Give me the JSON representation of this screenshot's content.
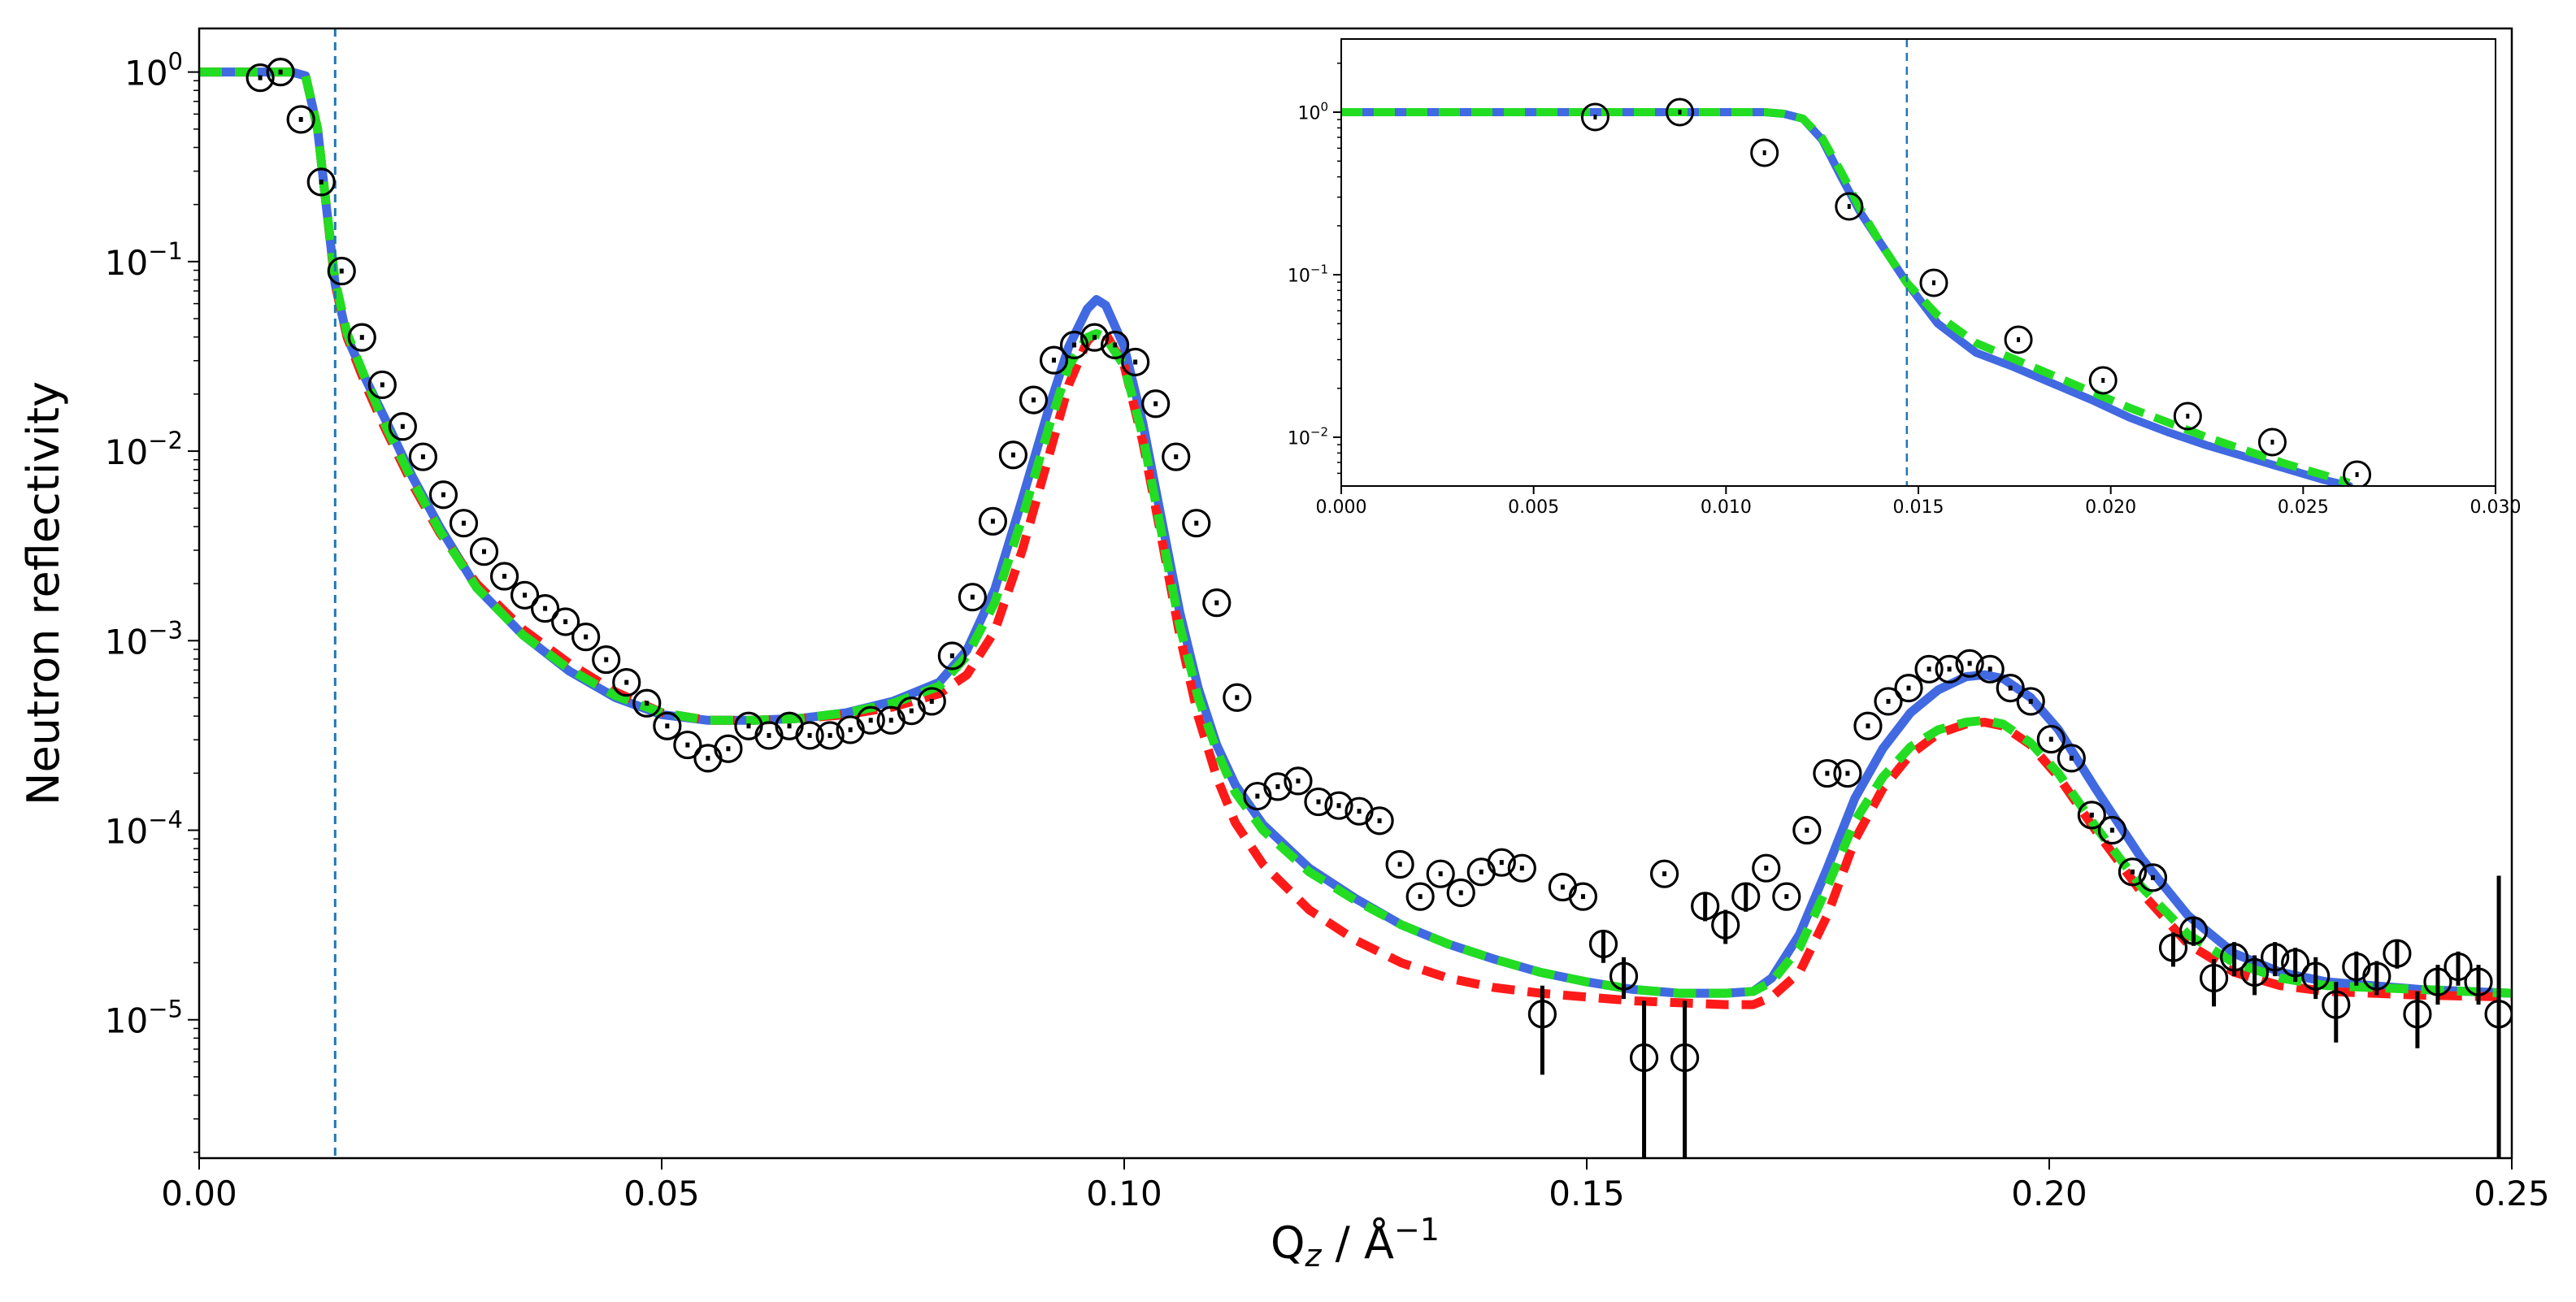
{
  "colors": {
    "blue": "#4169e1",
    "red": "#ff1a1a",
    "green": "#22dd22",
    "vline": "#1f77b4",
    "axis": "#000000"
  },
  "chart_data": [
    {
      "id": "main",
      "type": "line",
      "title": "",
      "xlabel": "Q",
      "xlabel_sub": "z",
      "xlabel_unit": " / Å",
      "xlabel_exp": "−1",
      "ylabel": "Neutron reflectivity",
      "xlim": [
        0.0,
        0.25
      ],
      "ylim_log10": [
        -5.73,
        0.23
      ],
      "yscale": "log",
      "xticks": [
        0.0,
        0.05,
        0.1,
        0.15,
        0.2,
        0.25
      ],
      "xtick_labels": [
        "0.00",
        "0.05",
        "0.10",
        "0.15",
        "0.20",
        "0.25"
      ],
      "yticks_exp": [
        0,
        -1,
        -2,
        -3,
        -4,
        -5
      ],
      "ytick_base": "10",
      "ytick_exps": [
        "0",
        "−1",
        "−2",
        "−3",
        "−4",
        "−5"
      ],
      "vline_x": 0.0147,
      "series": [
        {
          "name": "model-blue",
          "style": "solid",
          "color_key": "blue",
          "x": [
            0.0,
            0.01,
            0.0115,
            0.0128,
            0.0135,
            0.0147,
            0.016,
            0.018,
            0.02,
            0.023,
            0.026,
            0.03,
            0.035,
            0.04,
            0.045,
            0.05,
            0.055,
            0.06,
            0.065,
            0.07,
            0.075,
            0.08,
            0.083,
            0.086,
            0.089,
            0.092,
            0.094,
            0.096,
            0.097,
            0.098,
            0.1,
            0.102,
            0.104,
            0.106,
            0.108,
            0.11,
            0.112,
            0.115,
            0.12,
            0.125,
            0.13,
            0.135,
            0.14,
            0.145,
            0.15,
            0.155,
            0.16,
            0.165,
            0.168,
            0.17,
            0.173,
            0.176,
            0.179,
            0.182,
            0.185,
            0.188,
            0.191,
            0.193,
            0.195,
            0.198,
            0.201,
            0.205,
            0.21,
            0.215,
            0.22,
            0.225,
            0.23,
            0.24,
            0.25
          ],
          "logy": [
            0,
            0,
            -0.02,
            -0.3,
            -0.6,
            -1.12,
            -1.4,
            -1.62,
            -1.82,
            -2.13,
            -2.4,
            -2.72,
            -2.97,
            -3.16,
            -3.3,
            -3.39,
            -3.42,
            -3.42,
            -3.41,
            -3.38,
            -3.32,
            -3.22,
            -3.05,
            -2.73,
            -2.25,
            -1.75,
            -1.45,
            -1.25,
            -1.2,
            -1.23,
            -1.45,
            -1.85,
            -2.35,
            -2.85,
            -3.25,
            -3.55,
            -3.76,
            -3.97,
            -4.2,
            -4.36,
            -4.5,
            -4.6,
            -4.68,
            -4.75,
            -4.8,
            -4.84,
            -4.86,
            -4.86,
            -4.85,
            -4.78,
            -4.55,
            -4.2,
            -3.83,
            -3.57,
            -3.38,
            -3.26,
            -3.19,
            -3.18,
            -3.2,
            -3.3,
            -3.47,
            -3.78,
            -4.15,
            -4.45,
            -4.65,
            -4.75,
            -4.8,
            -4.84,
            -4.86
          ]
        },
        {
          "name": "model-red",
          "style": "dashed",
          "color_key": "red",
          "x": [
            0.0,
            0.01,
            0.0115,
            0.0128,
            0.0135,
            0.0147,
            0.016,
            0.018,
            0.02,
            0.023,
            0.026,
            0.03,
            0.035,
            0.04,
            0.045,
            0.05,
            0.055,
            0.06,
            0.065,
            0.07,
            0.075,
            0.08,
            0.083,
            0.086,
            0.089,
            0.092,
            0.094,
            0.096,
            0.097,
            0.098,
            0.1,
            0.102,
            0.104,
            0.106,
            0.108,
            0.11,
            0.112,
            0.115,
            0.12,
            0.125,
            0.13,
            0.135,
            0.14,
            0.145,
            0.15,
            0.155,
            0.16,
            0.165,
            0.168,
            0.17,
            0.173,
            0.176,
            0.179,
            0.182,
            0.185,
            0.188,
            0.191,
            0.193,
            0.195,
            0.198,
            0.201,
            0.205,
            0.21,
            0.215,
            0.22,
            0.225,
            0.23,
            0.24,
            0.25
          ],
          "logy": [
            0,
            0,
            -0.02,
            -0.3,
            -0.6,
            -1.12,
            -1.4,
            -1.65,
            -1.87,
            -2.17,
            -2.43,
            -2.7,
            -2.94,
            -3.12,
            -3.27,
            -3.38,
            -3.42,
            -3.42,
            -3.41,
            -3.39,
            -3.35,
            -3.28,
            -3.18,
            -2.95,
            -2.52,
            -2.0,
            -1.65,
            -1.42,
            -1.37,
            -1.38,
            -1.55,
            -1.95,
            -2.45,
            -2.97,
            -3.4,
            -3.72,
            -3.96,
            -4.18,
            -4.42,
            -4.58,
            -4.7,
            -4.78,
            -4.83,
            -4.86,
            -4.88,
            -4.9,
            -4.91,
            -4.92,
            -4.92,
            -4.88,
            -4.75,
            -4.45,
            -4.05,
            -3.78,
            -3.6,
            -3.49,
            -3.44,
            -3.43,
            -3.45,
            -3.55,
            -3.72,
            -4.0,
            -4.33,
            -4.6,
            -4.75,
            -4.82,
            -4.85,
            -4.87,
            -4.88
          ]
        },
        {
          "name": "model-green",
          "style": "dashed",
          "color_key": "green",
          "x": [
            0.0,
            0.01,
            0.0115,
            0.0128,
            0.0135,
            0.0147,
            0.016,
            0.018,
            0.02,
            0.023,
            0.026,
            0.03,
            0.035,
            0.04,
            0.045,
            0.05,
            0.055,
            0.06,
            0.065,
            0.07,
            0.075,
            0.08,
            0.083,
            0.086,
            0.089,
            0.092,
            0.094,
            0.096,
            0.097,
            0.098,
            0.1,
            0.102,
            0.104,
            0.106,
            0.108,
            0.11,
            0.112,
            0.115,
            0.12,
            0.125,
            0.13,
            0.135,
            0.14,
            0.145,
            0.15,
            0.155,
            0.16,
            0.165,
            0.168,
            0.17,
            0.173,
            0.176,
            0.179,
            0.182,
            0.185,
            0.188,
            0.191,
            0.193,
            0.195,
            0.198,
            0.201,
            0.205,
            0.21,
            0.215,
            0.22,
            0.225,
            0.23,
            0.24,
            0.25
          ],
          "logy": [
            0,
            0,
            -0.02,
            -0.3,
            -0.6,
            -1.1,
            -1.38,
            -1.62,
            -1.85,
            -2.15,
            -2.42,
            -2.72,
            -2.97,
            -3.15,
            -3.29,
            -3.38,
            -3.42,
            -3.42,
            -3.41,
            -3.38,
            -3.33,
            -3.24,
            -3.08,
            -2.8,
            -2.35,
            -1.85,
            -1.55,
            -1.4,
            -1.38,
            -1.4,
            -1.55,
            -1.92,
            -2.42,
            -2.92,
            -3.3,
            -3.58,
            -3.8,
            -4.0,
            -4.22,
            -4.37,
            -4.5,
            -4.6,
            -4.68,
            -4.75,
            -4.8,
            -4.84,
            -4.86,
            -4.86,
            -4.85,
            -4.8,
            -4.62,
            -4.3,
            -3.95,
            -3.72,
            -3.56,
            -3.47,
            -3.43,
            -3.42,
            -3.44,
            -3.54,
            -3.7,
            -3.98,
            -4.3,
            -4.55,
            -4.7,
            -4.78,
            -4.82,
            -4.84,
            -4.86
          ]
        }
      ],
      "points": {
        "name": "data",
        "marker": "open-circle",
        "x": [
          0.0066,
          0.0088,
          0.011,
          0.0132,
          0.0154,
          0.0176,
          0.0198,
          0.022,
          0.0242,
          0.0264,
          0.0286,
          0.0308,
          0.033,
          0.0352,
          0.0374,
          0.0396,
          0.0418,
          0.044,
          0.0462,
          0.0484,
          0.0506,
          0.0528,
          0.055,
          0.0572,
          0.0594,
          0.0616,
          0.0638,
          0.066,
          0.0682,
          0.0704,
          0.0726,
          0.0748,
          0.077,
          0.0792,
          0.0814,
          0.0836,
          0.0858,
          0.088,
          0.0902,
          0.0924,
          0.0946,
          0.0968,
          0.099,
          0.1012,
          0.1034,
          0.1056,
          0.1078,
          0.11,
          0.1122,
          0.1144,
          0.1166,
          0.1188,
          0.121,
          0.1232,
          0.1254,
          0.1276,
          0.1298,
          0.132,
          0.1342,
          0.1364,
          0.1386,
          0.1408,
          0.143,
          0.1452,
          0.1474,
          0.1496,
          0.1518,
          0.154,
          0.1562,
          0.1584,
          0.1606,
          0.1628,
          0.165,
          0.1672,
          0.1694,
          0.1716,
          0.1738,
          0.176,
          0.1782,
          0.1804,
          0.1826,
          0.1848,
          0.187,
          0.1892,
          0.1914,
          0.1936,
          0.1958,
          0.198,
          0.2002,
          0.2024,
          0.2046,
          0.2068,
          0.209,
          0.2112,
          0.2134,
          0.2156,
          0.2178,
          0.22,
          0.2222,
          0.2244,
          0.2266,
          0.2288,
          0.231,
          0.2332,
          0.2354,
          0.2376,
          0.2398,
          0.242,
          0.2442,
          0.2464,
          0.2486
        ],
        "logy": [
          -0.03,
          0.0,
          -0.25,
          -0.58,
          -1.05,
          -1.4,
          -1.65,
          -1.87,
          -2.03,
          -2.23,
          -2.38,
          -2.53,
          -2.66,
          -2.76,
          -2.83,
          -2.9,
          -2.98,
          -3.1,
          -3.22,
          -3.33,
          -3.45,
          -3.55,
          -3.62,
          -3.57,
          -3.45,
          -3.5,
          -3.45,
          -3.5,
          -3.5,
          -3.47,
          -3.42,
          -3.42,
          -3.37,
          -3.32,
          -3.08,
          -2.77,
          -2.37,
          -2.02,
          -1.73,
          -1.52,
          -1.44,
          -1.4,
          -1.44,
          -1.53,
          -1.75,
          -2.03,
          -2.38,
          -2.8,
          -3.3,
          -3.82,
          -3.77,
          -3.74,
          -3.85,
          -3.87,
          -3.9,
          -3.95,
          -4.18,
          -4.35,
          -4.23,
          -4.33,
          -4.22,
          -4.17,
          -4.2,
          -4.97,
          -4.3,
          -4.35,
          -4.6,
          -4.77,
          -5.2,
          -4.23,
          -5.2,
          -4.4,
          -4.5,
          -4.35,
          -4.2,
          -4.35,
          -4.0,
          -3.7,
          -3.7,
          -3.45,
          -3.32,
          -3.25,
          -3.15,
          -3.15,
          -3.12,
          -3.15,
          -3.25,
          -3.32,
          -3.52,
          -3.62,
          -3.92,
          -4.0,
          -4.22,
          -4.25,
          -4.62,
          -4.53,
          -4.78,
          -4.67,
          -4.75,
          -4.67,
          -4.7,
          -4.77,
          -4.92,
          -4.72,
          -4.77,
          -4.65,
          -4.97,
          -4.8,
          -4.72,
          -4.8,
          -4.97
        ],
        "err_lo": [
          0,
          0,
          0,
          0,
          0,
          0,
          0,
          0,
          0,
          0,
          0,
          0,
          0,
          0,
          0,
          0,
          0,
          0,
          0,
          0,
          0,
          0,
          0,
          0,
          0,
          0,
          0,
          0,
          0,
          0,
          0,
          0,
          0,
          0,
          0,
          0,
          0,
          0,
          0,
          0,
          0,
          0,
          0,
          0,
          0,
          0,
          0,
          0,
          0,
          0,
          0,
          0,
          0,
          0,
          0,
          0,
          0,
          0,
          0,
          0,
          0,
          0,
          0,
          0.32,
          0,
          0,
          0.1,
          0.12,
          0.65,
          0,
          0.65,
          0.08,
          0.1,
          0.08,
          0,
          0,
          0,
          0,
          0,
          0,
          0,
          0,
          0,
          0,
          0,
          0,
          0,
          0,
          0,
          0,
          0,
          0,
          0,
          0,
          0.1,
          0.08,
          0.15,
          0.1,
          0.12,
          0.1,
          0.1,
          0.12,
          0.2,
          0.1,
          0.1,
          0.08,
          0.18,
          0.12,
          0.1,
          0.12,
          0.97
        ],
        "err_hi": [
          0,
          0,
          0,
          0,
          0,
          0,
          0,
          0,
          0,
          0,
          0,
          0,
          0,
          0,
          0,
          0,
          0,
          0,
          0,
          0,
          0,
          0,
          0,
          0,
          0,
          0,
          0,
          0,
          0,
          0,
          0,
          0,
          0,
          0,
          0,
          0,
          0,
          0,
          0,
          0,
          0,
          0,
          0,
          0,
          0,
          0,
          0,
          0,
          0,
          0,
          0,
          0,
          0,
          0,
          0,
          0,
          0,
          0,
          0,
          0,
          0,
          0,
          0,
          0.15,
          0,
          0,
          0.07,
          0.1,
          0.3,
          0,
          0.3,
          0.07,
          0.08,
          0.07,
          0,
          0,
          0,
          0,
          0,
          0,
          0,
          0,
          0,
          0,
          0,
          0,
          0,
          0,
          0,
          0,
          0,
          0,
          0,
          0,
          0.08,
          0.07,
          0.1,
          0.08,
          0.09,
          0.08,
          0.08,
          0.1,
          0.12,
          0.08,
          0.08,
          0.07,
          0.12,
          0.09,
          0.08,
          0.09,
          0.73
        ]
      }
    },
    {
      "id": "inset",
      "type": "line",
      "title": "",
      "xlabel": "",
      "ylabel": "",
      "xlim": [
        0.0,
        0.03
      ],
      "ylim_log10": [
        -2.3,
        0.45
      ],
      "yscale": "log",
      "xticks": [
        0.0,
        0.005,
        0.01,
        0.015,
        0.02,
        0.025,
        0.03
      ],
      "xtick_labels": [
        "0.000",
        "0.005",
        "0.010",
        "0.015",
        "0.020",
        "0.025",
        "0.030"
      ],
      "yticks_exp": [
        0,
        -1,
        -2
      ],
      "ytick_base": "10",
      "ytick_exps": [
        "0",
        "−1",
        "−2"
      ],
      "vline_x": 0.0147,
      "series": [
        {
          "name": "inset-blue",
          "style": "solid",
          "color_key": "blue",
          "x": [
            0.0,
            0.011,
            0.0115,
            0.012,
            0.0125,
            0.013,
            0.0135,
            0.014,
            0.0147,
            0.0155,
            0.0165,
            0.0175,
            0.0185,
            0.0195,
            0.0205,
            0.0215,
            0.0225,
            0.0235,
            0.0245,
            0.0255,
            0.0262
          ],
          "logy": [
            0,
            0,
            -0.01,
            -0.04,
            -0.17,
            -0.4,
            -0.62,
            -0.8,
            -1.05,
            -1.3,
            -1.48,
            -1.57,
            -1.67,
            -1.77,
            -1.88,
            -1.97,
            -2.05,
            -2.12,
            -2.19,
            -2.26,
            -2.3
          ]
        },
        {
          "name": "inset-green",
          "style": "dashed",
          "color_key": "green",
          "x": [
            0.0,
            0.011,
            0.0115,
            0.012,
            0.0125,
            0.013,
            0.0135,
            0.014,
            0.0147,
            0.0155,
            0.0165,
            0.0175,
            0.0185,
            0.0195,
            0.0205,
            0.0215,
            0.0225,
            0.0235,
            0.0245,
            0.0255,
            0.0262
          ],
          "logy": [
            0,
            0,
            -0.01,
            -0.04,
            -0.16,
            -0.37,
            -0.6,
            -0.8,
            -1.05,
            -1.25,
            -1.42,
            -1.52,
            -1.62,
            -1.72,
            -1.82,
            -1.91,
            -2.0,
            -2.08,
            -2.16,
            -2.23,
            -2.28
          ]
        }
      ],
      "points": {
        "name": "inset-data",
        "marker": "open-circle",
        "x": [
          0.0066,
          0.0088,
          0.011,
          0.0132,
          0.0154,
          0.0176,
          0.0198,
          0.022,
          0.0242,
          0.0264
        ],
        "logy": [
          -0.03,
          0.0,
          -0.25,
          -0.58,
          -1.05,
          -1.4,
          -1.65,
          -1.87,
          -2.03,
          -2.23
        ],
        "err_lo": [
          0,
          0,
          0,
          0,
          0,
          0,
          0,
          0,
          0,
          0
        ],
        "err_hi": [
          0,
          0,
          0,
          0,
          0,
          0,
          0,
          0,
          0,
          0
        ]
      }
    }
  ]
}
